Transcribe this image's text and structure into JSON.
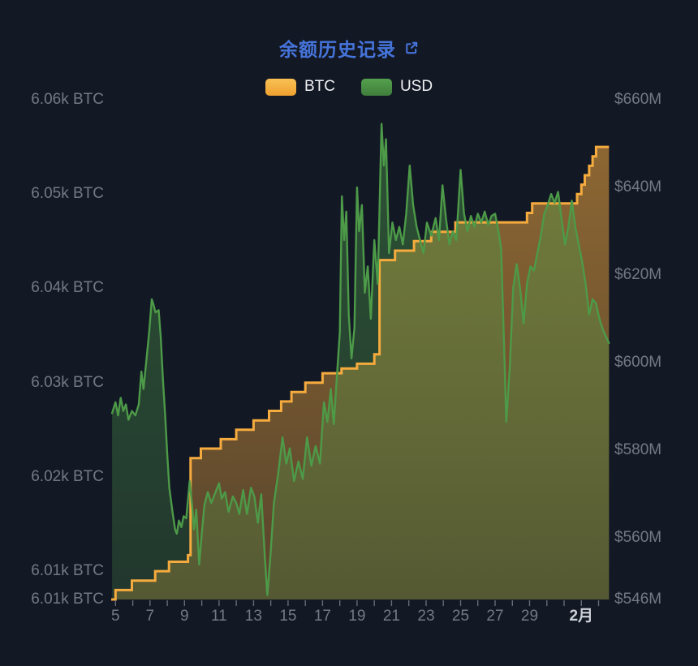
{
  "title": {
    "text": "余额历史记录"
  },
  "legend": {
    "items": [
      {
        "label": "BTC",
        "color_top": "#f8c155",
        "color_bottom": "#f0a02f"
      },
      {
        "label": "USD",
        "color_top": "#55a04d",
        "color_bottom": "#3f7e3c"
      }
    ]
  },
  "colors": {
    "background": "#131825",
    "title": "#4574da",
    "axis_text": "#747984",
    "x_label_highlight": "#ced2d8",
    "tick": "#666b76",
    "btc_line": "#f6ab3e",
    "usd_line": "#4d9a48"
  },
  "chart_data": {
    "type": "area",
    "title": "余额历史记录",
    "grid": false,
    "legend_position": "top-center",
    "x_axis": {
      "unit": "day (Jan 5 – Feb 2)",
      "range": [
        4.75,
        33.6
      ],
      "ticks": [
        {
          "label": "5",
          "day": 5
        },
        {
          "label": "7",
          "day": 7
        },
        {
          "label": "9",
          "day": 9
        },
        {
          "label": "11",
          "day": 11
        },
        {
          "label": "13",
          "day": 13
        },
        {
          "label": "15",
          "day": 15
        },
        {
          "label": "17",
          "day": 17
        },
        {
          "label": "19",
          "day": 19
        },
        {
          "label": "21",
          "day": 21
        },
        {
          "label": "23",
          "day": 23
        },
        {
          "label": "25",
          "day": 25
        },
        {
          "label": "27",
          "day": 27
        },
        {
          "label": "29",
          "day": 29
        },
        {
          "label": "2月",
          "day": 32,
          "bold": true
        }
      ]
    },
    "y_axis_left": {
      "title": "BTC",
      "range": [
        6007,
        6060
      ],
      "ticks": [
        {
          "label": "6.06k BTC",
          "value": 6060
        },
        {
          "label": "6.05k BTC",
          "value": 6050
        },
        {
          "label": "6.04k BTC",
          "value": 6040
        },
        {
          "label": "6.03k BTC",
          "value": 6030
        },
        {
          "label": "6.02k BTC",
          "value": 6020
        },
        {
          "label": "6.01k BTC",
          "value": 6010
        },
        {
          "label": "6.01k BTC",
          "value": 6007
        }
      ]
    },
    "y_axis_right": {
      "title": "USD",
      "range": [
        546,
        660
      ],
      "ticks": [
        {
          "label": "$660M",
          "value": 660
        },
        {
          "label": "$640M",
          "value": 640
        },
        {
          "label": "$620M",
          "value": 620
        },
        {
          "label": "$600M",
          "value": 600
        },
        {
          "label": "$580M",
          "value": 580
        },
        {
          "label": "$560M",
          "value": 560
        },
        {
          "label": "$546M",
          "value": 546
        }
      ]
    },
    "series": [
      {
        "name": "BTC",
        "type": "step-line",
        "axis": "left",
        "color": "#f6ab3e",
        "points": [
          [
            4.75,
            6007
          ],
          [
            5.0,
            6008
          ],
          [
            5.95,
            6009
          ],
          [
            7.3,
            6010
          ],
          [
            8.1,
            6011
          ],
          [
            9.2,
            6011.7
          ],
          [
            9.35,
            6022
          ],
          [
            9.95,
            6023
          ],
          [
            11.1,
            6024
          ],
          [
            12.0,
            6025
          ],
          [
            13.0,
            6026
          ],
          [
            13.9,
            6027
          ],
          [
            14.6,
            6028
          ],
          [
            15.2,
            6029
          ],
          [
            16.0,
            6030
          ],
          [
            17.0,
            6031
          ],
          [
            18.1,
            6031.5
          ],
          [
            19.0,
            6032
          ],
          [
            20.0,
            6033
          ],
          [
            20.3,
            6043
          ],
          [
            21.2,
            6044
          ],
          [
            22.3,
            6045
          ],
          [
            23.3,
            6046
          ],
          [
            24.7,
            6047
          ],
          [
            28.85,
            6048
          ],
          [
            29.15,
            6049
          ],
          [
            31.75,
            6050
          ],
          [
            32.0,
            6051
          ],
          [
            32.2,
            6052
          ],
          [
            32.45,
            6053
          ],
          [
            32.65,
            6054
          ],
          [
            32.85,
            6055
          ]
        ]
      },
      {
        "name": "USD",
        "type": "line",
        "axis": "right",
        "color": "#4d9a48",
        "points": [
          [
            4.8,
            588.5
          ],
          [
            5.0,
            591
          ],
          [
            5.15,
            588
          ],
          [
            5.3,
            592
          ],
          [
            5.45,
            589
          ],
          [
            5.6,
            590.5
          ],
          [
            5.75,
            587
          ],
          [
            5.95,
            589
          ],
          [
            6.15,
            588
          ],
          [
            6.35,
            590.5
          ],
          [
            6.5,
            598
          ],
          [
            6.62,
            594
          ],
          [
            6.8,
            601
          ],
          [
            6.95,
            607
          ],
          [
            7.1,
            614.5
          ],
          [
            7.22,
            613
          ],
          [
            7.32,
            611.5
          ],
          [
            7.5,
            612
          ],
          [
            7.62,
            606
          ],
          [
            7.75,
            596
          ],
          [
            7.88,
            588
          ],
          [
            8.0,
            579
          ],
          [
            8.12,
            571.5
          ],
          [
            8.3,
            566
          ],
          [
            8.45,
            562
          ],
          [
            8.55,
            561
          ],
          [
            8.68,
            564
          ],
          [
            8.82,
            562.5
          ],
          [
            8.95,
            565
          ],
          [
            9.1,
            564.5
          ],
          [
            9.3,
            573
          ],
          [
            9.45,
            567
          ],
          [
            9.55,
            562
          ],
          [
            9.68,
            566.5
          ],
          [
            9.85,
            554
          ],
          [
            10.0,
            561
          ],
          [
            10.15,
            567.5
          ],
          [
            10.35,
            570.5
          ],
          [
            10.55,
            568
          ],
          [
            10.75,
            570
          ],
          [
            11.0,
            572.5
          ],
          [
            11.15,
            569
          ],
          [
            11.35,
            570.5
          ],
          [
            11.55,
            566
          ],
          [
            11.8,
            569.5
          ],
          [
            12.0,
            568
          ],
          [
            12.18,
            565.5
          ],
          [
            12.4,
            571
          ],
          [
            12.62,
            565.5
          ],
          [
            12.85,
            571.5
          ],
          [
            13.05,
            569.5
          ],
          [
            13.25,
            563.5
          ],
          [
            13.45,
            570
          ],
          [
            13.65,
            556
          ],
          [
            13.8,
            547
          ],
          [
            13.98,
            556
          ],
          [
            14.18,
            568
          ],
          [
            14.42,
            574.5
          ],
          [
            14.68,
            583
          ],
          [
            14.9,
            577
          ],
          [
            15.1,
            580.5
          ],
          [
            15.35,
            573
          ],
          [
            15.6,
            577.5
          ],
          [
            15.85,
            573.5
          ],
          [
            16.1,
            583
          ],
          [
            16.35,
            576.5
          ],
          [
            16.6,
            581
          ],
          [
            16.85,
            577
          ],
          [
            17.08,
            591
          ],
          [
            17.28,
            586.5
          ],
          [
            17.48,
            594
          ],
          [
            17.65,
            586
          ],
          [
            17.85,
            598
          ],
          [
            18.0,
            607
          ],
          [
            18.12,
            638
          ],
          [
            18.25,
            628
          ],
          [
            18.38,
            634.5
          ],
          [
            18.52,
            611
          ],
          [
            18.68,
            601
          ],
          [
            18.85,
            608
          ],
          [
            19.0,
            640
          ],
          [
            19.12,
            630
          ],
          [
            19.28,
            636
          ],
          [
            19.45,
            616
          ],
          [
            19.62,
            622
          ],
          [
            19.8,
            610
          ],
          [
            20.0,
            628
          ],
          [
            20.2,
            618
          ],
          [
            20.42,
            654.5
          ],
          [
            20.55,
            645
          ],
          [
            20.68,
            651
          ],
          [
            20.85,
            625
          ],
          [
            21.05,
            632
          ],
          [
            21.25,
            628
          ],
          [
            21.45,
            631
          ],
          [
            21.65,
            627
          ],
          [
            21.85,
            634
          ],
          [
            22.05,
            645
          ],
          [
            22.25,
            636
          ],
          [
            22.45,
            631
          ],
          [
            22.65,
            628
          ],
          [
            22.85,
            625
          ],
          [
            23.05,
            632
          ],
          [
            23.3,
            629
          ],
          [
            23.55,
            633
          ],
          [
            23.75,
            628
          ],
          [
            23.95,
            640.5
          ],
          [
            24.15,
            633
          ],
          [
            24.35,
            627
          ],
          [
            24.55,
            630
          ],
          [
            24.75,
            628
          ],
          [
            25.0,
            644
          ],
          [
            25.2,
            634
          ],
          [
            25.4,
            630
          ],
          [
            25.6,
            633.5
          ],
          [
            25.8,
            631
          ],
          [
            26.0,
            634
          ],
          [
            26.2,
            632
          ],
          [
            26.4,
            634.5
          ],
          [
            26.6,
            631.5
          ],
          [
            26.8,
            633.5
          ],
          [
            27.0,
            634
          ],
          [
            27.2,
            630
          ],
          [
            27.35,
            626
          ],
          [
            27.5,
            607
          ],
          [
            27.65,
            586.5
          ],
          [
            27.85,
            599
          ],
          [
            28.05,
            617
          ],
          [
            28.25,
            622.5
          ],
          [
            28.45,
            617
          ],
          [
            28.65,
            609
          ],
          [
            28.85,
            618
          ],
          [
            29.05,
            622
          ],
          [
            29.25,
            621
          ],
          [
            29.45,
            625
          ],
          [
            29.65,
            629
          ],
          [
            29.85,
            634
          ],
          [
            30.05,
            636
          ],
          [
            30.25,
            638.5
          ],
          [
            30.45,
            636.5
          ],
          [
            30.65,
            639
          ],
          [
            30.85,
            633
          ],
          [
            31.05,
            627
          ],
          [
            31.25,
            631
          ],
          [
            31.45,
            637
          ],
          [
            31.65,
            631
          ],
          [
            31.85,
            627
          ],
          [
            32.05,
            623
          ],
          [
            32.25,
            618
          ],
          [
            32.45,
            611
          ],
          [
            32.65,
            614.5
          ],
          [
            32.85,
            613.5
          ],
          [
            33.05,
            610
          ],
          [
            33.25,
            607.5
          ],
          [
            33.6,
            604.5
          ]
        ]
      }
    ]
  }
}
